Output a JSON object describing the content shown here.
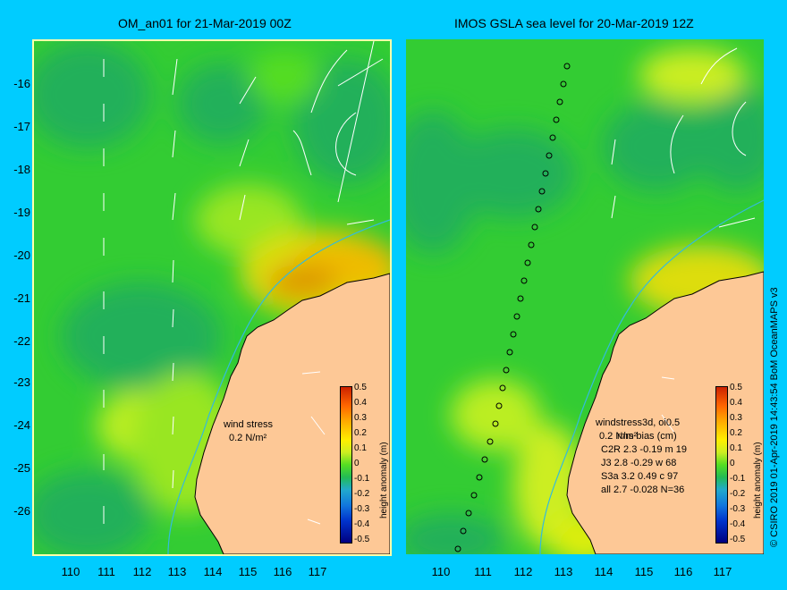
{
  "titles": {
    "left": "OM_an01 for 21-Mar-2019 00Z",
    "right": "IMOS GSLA sea level  for 20-Mar-2019 12Z"
  },
  "axes": {
    "lat_ticks": [
      "-16",
      "-17",
      "-18",
      "-19",
      "-20",
      "-21",
      "-22",
      "-23",
      "-24",
      "-25",
      "-26"
    ],
    "lon_ticks": [
      "110",
      "111",
      "112",
      "113",
      "114",
      "115",
      "116",
      "117"
    ]
  },
  "colorbar": {
    "label": "height anomaly (m)",
    "ticks": [
      "0.5",
      "0.4",
      "0.3",
      "0.2",
      "0.1",
      "0",
      "-0.1",
      "-0.2",
      "-0.3",
      "-0.4",
      "-0.5"
    ]
  },
  "left_panel": {
    "wind_label": "wind stress",
    "wind_value": "0.2 N/m²"
  },
  "right_panel": {
    "stats_lines": [
      "windstress3d, oi0.5",
      "0.2 N/m²",
      "rms bias (cm)",
      "C2R   2.3 -0.19 m 19",
      "J3     2.8 -0.29 w 68",
      "S3a   3.2 0.49 c 97",
      "all   2.7 -0.028 N=36"
    ]
  },
  "credit": "© CSIRO 2019   01-Apr-2019 14:43:54 BoM OceanMAPS v3",
  "colors": {
    "background": "#00ccff",
    "land": "#fdc896",
    "ocean_base": "#33cc33"
  }
}
